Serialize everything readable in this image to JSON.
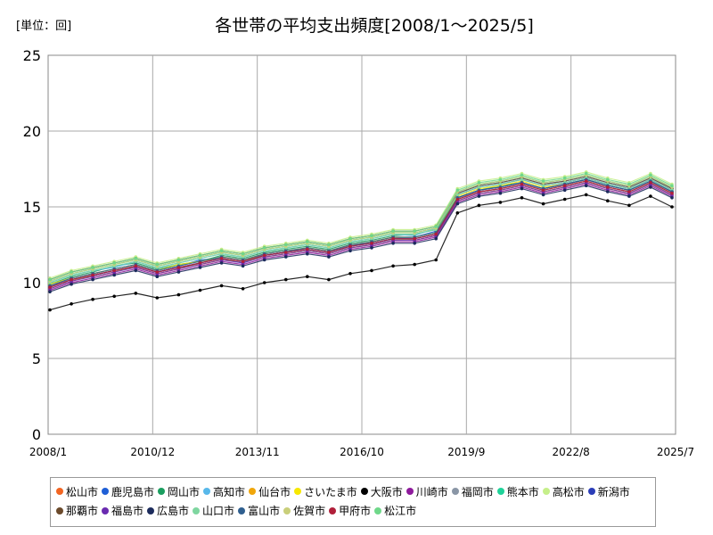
{
  "chart_data": {
    "type": "line",
    "title": "各世帯の平均支出頻度[2008/1～2025/5]",
    "unit_label": "[単位：回]",
    "xlabel": "",
    "ylabel": "",
    "x_range": [
      "2008/1",
      "2025/7"
    ],
    "x_ticks": [
      "2008/1",
      "2010/12",
      "2013/11",
      "2016/10",
      "2019/9",
      "2022/8",
      "2025/7"
    ],
    "ylim": [
      0,
      25
    ],
    "y_ticks": [
      0,
      5,
      10,
      15,
      20,
      25
    ],
    "grid": true,
    "legend_position": "bottom",
    "series": [
      {
        "name": "松山市",
        "color": "#f26522",
        "values": [
          9.6,
          10.1,
          10.5,
          10.8,
          11.0,
          10.6,
          10.9,
          11.3,
          11.7,
          11.5,
          11.8,
          12.0,
          12.3,
          12.1,
          12.4,
          12.7,
          13.0,
          12.8,
          13.1,
          15.5,
          16.0,
          16.2,
          16.5,
          16.1,
          16.4,
          16.7,
          16.3,
          16.0,
          16.6,
          15.9
        ]
      },
      {
        "name": "鹿児島市",
        "color": "#1f5fd6",
        "values": [
          9.8,
          10.3,
          10.6,
          10.9,
          11.2,
          10.8,
          11.1,
          11.5,
          11.6,
          11.3,
          11.9,
          12.1,
          12.2,
          12.0,
          12.5,
          12.6,
          12.9,
          13.0,
          13.4,
          15.8,
          16.3,
          16.5,
          16.8,
          16.4,
          16.6,
          16.9,
          16.5,
          16.2,
          16.8,
          16.1
        ]
      },
      {
        "name": "岡山市",
        "color": "#1a9e5f",
        "values": [
          9.9,
          10.4,
          10.7,
          11.1,
          11.3,
          10.9,
          11.2,
          11.4,
          11.8,
          11.6,
          12.0,
          12.2,
          12.4,
          12.2,
          12.6,
          12.8,
          13.1,
          13.2,
          13.5,
          15.6,
          16.1,
          16.4,
          16.6,
          16.2,
          16.5,
          16.8,
          16.4,
          16.1,
          16.7,
          16.0
        ]
      },
      {
        "name": "高知市",
        "color": "#58b8ea",
        "values": [
          10.0,
          10.5,
          10.8,
          11.0,
          11.4,
          11.0,
          11.3,
          11.6,
          11.9,
          11.7,
          12.1,
          12.3,
          12.5,
          12.3,
          12.7,
          12.9,
          13.2,
          13.1,
          13.6,
          15.9,
          16.4,
          16.6,
          16.9,
          16.5,
          16.7,
          17.0,
          16.6,
          16.3,
          16.9,
          16.2
        ]
      },
      {
        "name": "仙台市",
        "color": "#f0a60a",
        "values": [
          9.7,
          10.2,
          10.4,
          10.7,
          11.1,
          10.7,
          11.0,
          11.2,
          11.5,
          11.4,
          11.7,
          11.9,
          12.1,
          11.9,
          12.3,
          12.5,
          12.8,
          12.9,
          13.2,
          15.4,
          15.9,
          16.1,
          16.4,
          16.0,
          16.3,
          16.6,
          16.2,
          15.9,
          16.5,
          15.8
        ]
      },
      {
        "name": "さいたま市",
        "color": "#f7e800",
        "values": [
          9.9,
          10.3,
          10.6,
          10.9,
          11.2,
          10.8,
          11.2,
          11.4,
          11.7,
          11.5,
          11.9,
          12.1,
          12.3,
          12.1,
          12.5,
          12.7,
          13.0,
          13.0,
          13.3,
          15.7,
          16.2,
          16.4,
          16.7,
          16.3,
          16.5,
          16.8,
          16.4,
          16.1,
          16.7,
          16.0
        ]
      },
      {
        "name": "大阪市",
        "color": "#000000",
        "values": [
          8.2,
          8.6,
          8.9,
          9.1,
          9.3,
          9.0,
          9.2,
          9.5,
          9.8,
          9.6,
          10.0,
          10.2,
          10.4,
          10.2,
          10.6,
          10.8,
          11.1,
          11.2,
          11.5,
          14.6,
          15.1,
          15.3,
          15.6,
          15.2,
          15.5,
          15.8,
          15.4,
          15.1,
          15.7,
          15.0
        ]
      },
      {
        "name": "川崎市",
        "color": "#8e1a9c",
        "values": [
          9.5,
          10.0,
          10.3,
          10.6,
          10.9,
          10.5,
          10.8,
          11.1,
          11.4,
          11.2,
          11.6,
          11.8,
          12.0,
          11.8,
          12.2,
          12.4,
          12.7,
          12.7,
          13.0,
          15.3,
          15.8,
          16.0,
          16.3,
          15.9,
          16.2,
          16.5,
          16.1,
          15.8,
          16.4,
          15.7
        ]
      },
      {
        "name": "福岡市",
        "color": "#8a96a6",
        "values": [
          9.8,
          10.2,
          10.5,
          10.8,
          11.1,
          10.7,
          11.0,
          11.3,
          11.6,
          11.4,
          11.8,
          12.0,
          12.2,
          12.0,
          12.4,
          12.6,
          12.9,
          12.9,
          13.2,
          15.5,
          16.0,
          16.2,
          16.5,
          16.1,
          16.4,
          16.7,
          16.3,
          16.0,
          16.6,
          15.9
        ]
      },
      {
        "name": "熊本市",
        "color": "#1fd39a",
        "values": [
          10.1,
          10.6,
          10.9,
          11.2,
          11.5,
          11.1,
          11.4,
          11.7,
          12.0,
          11.8,
          12.2,
          12.4,
          12.6,
          12.4,
          12.8,
          13.0,
          13.3,
          13.3,
          13.6,
          16.0,
          16.5,
          16.7,
          17.0,
          16.6,
          16.8,
          17.1,
          16.7,
          16.4,
          17.0,
          16.3
        ]
      },
      {
        "name": "高松市",
        "color": "#c6ef8a",
        "values": [
          10.3,
          10.8,
          11.1,
          11.4,
          11.7,
          11.3,
          11.6,
          11.9,
          12.2,
          12.0,
          12.4,
          12.6,
          12.8,
          12.6,
          13.0,
          13.2,
          13.5,
          13.5,
          13.8,
          16.2,
          16.7,
          16.9,
          17.2,
          16.8,
          17.0,
          17.3,
          16.9,
          16.6,
          17.2,
          16.5
        ]
      },
      {
        "name": "新潟市",
        "color": "#2b3db8",
        "values": [
          9.7,
          10.2,
          10.5,
          10.8,
          11.1,
          10.7,
          11.0,
          11.3,
          11.6,
          11.4,
          11.8,
          12.0,
          12.2,
          12.0,
          12.4,
          12.6,
          12.9,
          12.9,
          13.2,
          15.6,
          16.1,
          16.3,
          16.6,
          16.2,
          16.5,
          16.8,
          16.4,
          16.1,
          16.7,
          16.0
        ]
      },
      {
        "name": "那覇市",
        "color": "#6b4a2b",
        "values": [
          10.2,
          10.7,
          11.0,
          11.3,
          11.6,
          11.2,
          11.5,
          11.8,
          12.1,
          11.9,
          12.3,
          12.5,
          12.7,
          12.5,
          12.9,
          13.1,
          13.4,
          13.4,
          13.7,
          15.9,
          16.4,
          16.6,
          16.9,
          16.5,
          16.7,
          17.0,
          16.6,
          16.3,
          16.9,
          16.2
        ]
      },
      {
        "name": "福島市",
        "color": "#6a2bb0",
        "values": [
          9.6,
          10.1,
          10.4,
          10.7,
          11.0,
          10.6,
          10.9,
          11.2,
          11.5,
          11.3,
          11.7,
          11.9,
          12.1,
          11.9,
          12.3,
          12.5,
          12.8,
          12.8,
          13.1,
          15.4,
          15.9,
          16.1,
          16.4,
          16.0,
          16.3,
          16.6,
          16.2,
          15.9,
          16.5,
          15.8
        ]
      },
      {
        "name": "広島市",
        "color": "#1c2b5c",
        "values": [
          9.4,
          9.9,
          10.2,
          10.5,
          10.8,
          10.4,
          10.7,
          11.0,
          11.3,
          11.1,
          11.5,
          11.7,
          11.9,
          11.7,
          12.1,
          12.3,
          12.6,
          12.6,
          12.9,
          15.2,
          15.7,
          15.9,
          16.2,
          15.8,
          16.1,
          16.4,
          16.0,
          15.7,
          16.3,
          15.6
        ]
      },
      {
        "name": "山口市",
        "color": "#7fd6a0",
        "values": [
          10.0,
          10.5,
          10.8,
          11.1,
          11.4,
          11.0,
          11.3,
          11.6,
          11.9,
          11.7,
          12.1,
          12.3,
          12.5,
          12.3,
          12.7,
          12.9,
          13.2,
          13.2,
          13.5,
          15.8,
          16.3,
          16.5,
          16.8,
          16.4,
          16.6,
          16.9,
          16.5,
          16.2,
          16.8,
          16.1
        ]
      },
      {
        "name": "富山市",
        "color": "#2f5f8f",
        "values": [
          9.8,
          10.3,
          10.6,
          10.9,
          11.2,
          10.8,
          11.1,
          11.4,
          11.7,
          11.5,
          11.9,
          12.1,
          12.3,
          12.1,
          12.5,
          12.7,
          13.0,
          13.0,
          13.3,
          15.6,
          16.1,
          16.3,
          16.6,
          16.2,
          16.5,
          16.8,
          16.4,
          16.1,
          16.7,
          16.0
        ]
      },
      {
        "name": "佐賀市",
        "color": "#c9cf7a",
        "values": [
          10.1,
          10.6,
          10.9,
          11.2,
          11.5,
          11.1,
          11.4,
          11.7,
          12.0,
          11.8,
          12.2,
          12.4,
          12.6,
          12.4,
          12.8,
          13.0,
          13.3,
          13.3,
          13.6,
          16.0,
          16.5,
          16.7,
          17.0,
          16.6,
          16.8,
          17.1,
          16.7,
          16.4,
          17.0,
          16.3
        ]
      },
      {
        "name": "甲府市",
        "color": "#b01f3a",
        "values": [
          9.7,
          10.2,
          10.5,
          10.8,
          11.1,
          10.7,
          11.0,
          11.3,
          11.6,
          11.4,
          11.8,
          12.0,
          12.2,
          12.0,
          12.4,
          12.6,
          12.9,
          12.9,
          13.2,
          15.5,
          16.0,
          16.2,
          16.5,
          16.1,
          16.4,
          16.7,
          16.3,
          16.0,
          16.6,
          15.9
        ]
      },
      {
        "name": "松江市",
        "color": "#6fd88a",
        "values": [
          10.2,
          10.7,
          11.0,
          11.3,
          11.6,
          11.2,
          11.5,
          11.8,
          12.1,
          11.9,
          12.3,
          12.5,
          12.7,
          12.5,
          12.9,
          13.1,
          13.4,
          13.4,
          13.7,
          16.1,
          16.6,
          16.8,
          17.1,
          16.7,
          16.9,
          17.2,
          16.8,
          16.5,
          17.1,
          16.4
        ]
      }
    ]
  }
}
